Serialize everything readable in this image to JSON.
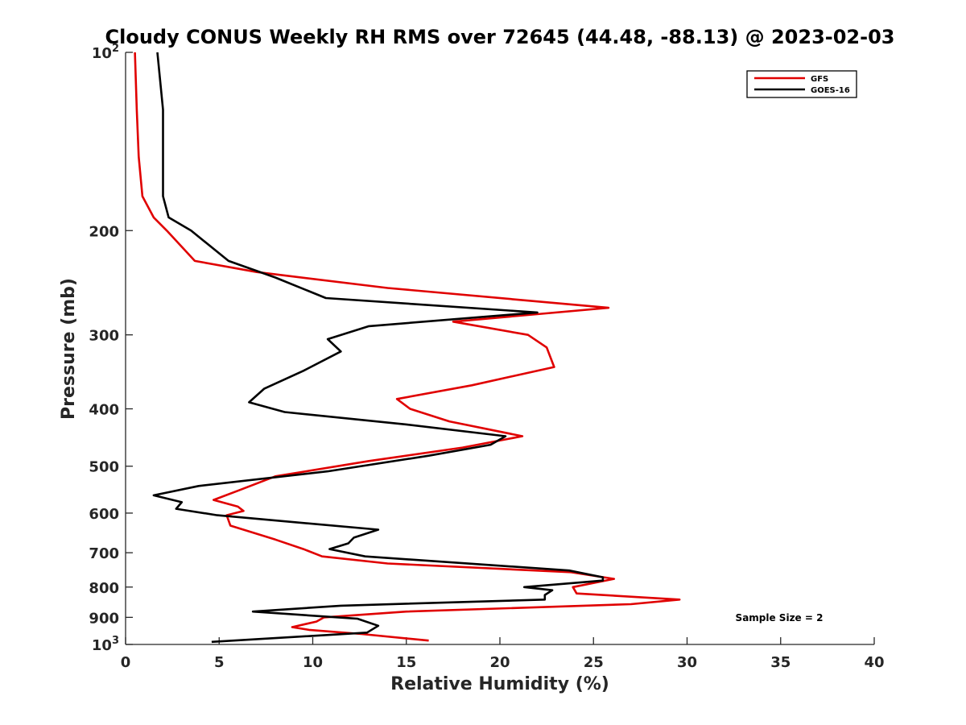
{
  "chart_data": {
    "type": "line",
    "title": "Cloudy CONUS Weekly RH RMS over 72645 (44.48, -88.13) @ 2023-02-03",
    "xlabel": "Relative Humidity (%)",
    "ylabel": "Pressure (mb)",
    "xlim": [
      0,
      40
    ],
    "ylim": [
      100,
      1000
    ],
    "y_scale": "log",
    "y_reversed": true,
    "x_ticks": [
      "0",
      "5",
      "10",
      "15",
      "20",
      "25",
      "30",
      "35",
      "40"
    ],
    "y_ticks": [
      {
        "value": 100,
        "base": "10",
        "exp": "2"
      },
      {
        "value": 200,
        "label": "200"
      },
      {
        "value": 300,
        "label": "300"
      },
      {
        "value": 400,
        "label": "400"
      },
      {
        "value": 500,
        "label": "500"
      },
      {
        "value": 600,
        "label": "600"
      },
      {
        "value": 700,
        "label": "700"
      },
      {
        "value": 800,
        "label": "800"
      },
      {
        "value": 900,
        "label": "900"
      },
      {
        "value": 1000,
        "base": "10",
        "exp": "3"
      }
    ],
    "grid": false,
    "legend": {
      "position": "top-right"
    },
    "annotation": "Sample Size = 2",
    "series": [
      {
        "name": "GFS",
        "color": "#e00000",
        "points": [
          [
            0.5,
            100
          ],
          [
            0.6,
            125
          ],
          [
            0.7,
            150
          ],
          [
            0.9,
            175
          ],
          [
            1.5,
            190
          ],
          [
            2.2,
            200
          ],
          [
            3.7,
            225
          ],
          [
            7,
            235
          ],
          [
            14,
            250
          ],
          [
            25.8,
            270
          ],
          [
            17.5,
            285
          ],
          [
            21.5,
            300
          ],
          [
            22.5,
            315
          ],
          [
            22.9,
            340
          ],
          [
            18.5,
            365
          ],
          [
            14.5,
            385
          ],
          [
            15.2,
            400
          ],
          [
            17.3,
            420
          ],
          [
            21.2,
            445
          ],
          [
            18,
            465
          ],
          [
            13,
            490
          ],
          [
            8,
            520
          ],
          [
            6,
            550
          ],
          [
            4.7,
            570
          ],
          [
            6,
            585
          ],
          [
            6.3,
            595
          ],
          [
            5.4,
            605
          ],
          [
            5.6,
            630
          ],
          [
            8,
            665
          ],
          [
            9.5,
            690
          ],
          [
            10.5,
            710
          ],
          [
            14,
            730
          ],
          [
            23.8,
            755
          ],
          [
            26.1,
            775
          ],
          [
            23.9,
            800
          ],
          [
            24.1,
            820
          ],
          [
            29.6,
            840
          ],
          [
            27,
            855
          ],
          [
            15,
            880
          ],
          [
            10.6,
            900
          ],
          [
            10.2,
            915
          ],
          [
            8.9,
            935
          ],
          [
            9.8,
            945
          ],
          [
            12.6,
            960
          ],
          [
            16.2,
            985
          ]
        ]
      },
      {
        "name": "GOES-16",
        "color": "#000000",
        "points": [
          [
            1.7,
            100
          ],
          [
            2,
            125
          ],
          [
            2,
            150
          ],
          [
            2,
            175
          ],
          [
            2.3,
            190
          ],
          [
            3.5,
            200
          ],
          [
            5.5,
            225
          ],
          [
            8,
            240
          ],
          [
            10.7,
            260
          ],
          [
            22,
            275
          ],
          [
            13,
            290
          ],
          [
            10.8,
            305
          ],
          [
            11.5,
            320
          ],
          [
            9.5,
            345
          ],
          [
            7.4,
            370
          ],
          [
            6.6,
            390
          ],
          [
            8.5,
            405
          ],
          [
            15,
            425
          ],
          [
            20.3,
            445
          ],
          [
            19.5,
            460
          ],
          [
            16.2,
            480
          ],
          [
            10.8,
            510
          ],
          [
            3.9,
            540
          ],
          [
            1.5,
            560
          ],
          [
            3,
            575
          ],
          [
            2.7,
            590
          ],
          [
            4.9,
            605
          ],
          [
            13.5,
            640
          ],
          [
            12.2,
            660
          ],
          [
            11.9,
            675
          ],
          [
            10.9,
            690
          ],
          [
            12.8,
            710
          ],
          [
            23.7,
            750
          ],
          [
            25.5,
            770
          ],
          [
            25.5,
            780
          ],
          [
            21.3,
            800
          ],
          [
            22.8,
            810
          ],
          [
            22.4,
            825
          ],
          [
            22.4,
            840
          ],
          [
            11.5,
            860
          ],
          [
            6.8,
            880
          ],
          [
            12.4,
            905
          ],
          [
            13.5,
            930
          ],
          [
            12.9,
            955
          ],
          [
            4.6,
            990
          ]
        ]
      }
    ]
  }
}
